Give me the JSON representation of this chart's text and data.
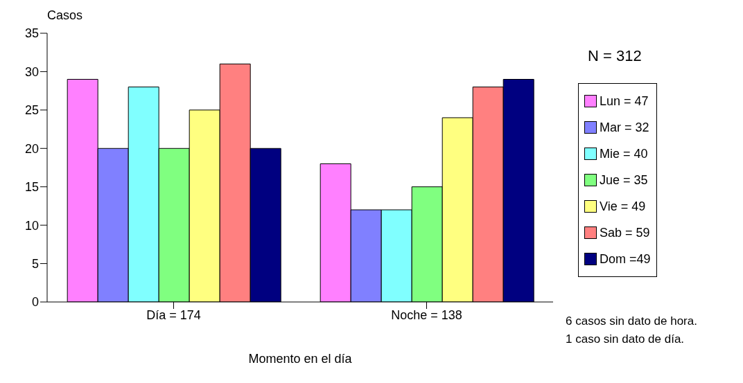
{
  "chart_data": {
    "type": "bar",
    "ylabel": "Casos",
    "xlabel": "Momento en el día",
    "categories": [
      "Día = 174",
      "Noche = 138"
    ],
    "series": [
      {
        "name": "Lun = 47",
        "color": "#ff80ff",
        "values": [
          29,
          18
        ]
      },
      {
        "name": "Mar = 32",
        "color": "#8080ff",
        "values": [
          20,
          12
        ]
      },
      {
        "name": "Mie = 40",
        "color": "#80ffff",
        "values": [
          28,
          12
        ]
      },
      {
        "name": "Jue = 35",
        "color": "#80ff80",
        "values": [
          20,
          15
        ]
      },
      {
        "name": "Vie = 49",
        "color": "#ffff80",
        "values": [
          25,
          24
        ]
      },
      {
        "name": "Sab = 59",
        "color": "#ff8080",
        "values": [
          31,
          28
        ]
      },
      {
        "name": "Dom =49",
        "color": "#000080",
        "values": [
          20,
          29
        ]
      }
    ],
    "ylim": [
      0,
      35
    ],
    "yticks": [
      0,
      5,
      10,
      15,
      20,
      25,
      30,
      35
    ],
    "legend": "right",
    "annotations": [
      "N = 312",
      "6 casos sin dato de hora.",
      "1 caso sin dato de día."
    ]
  }
}
